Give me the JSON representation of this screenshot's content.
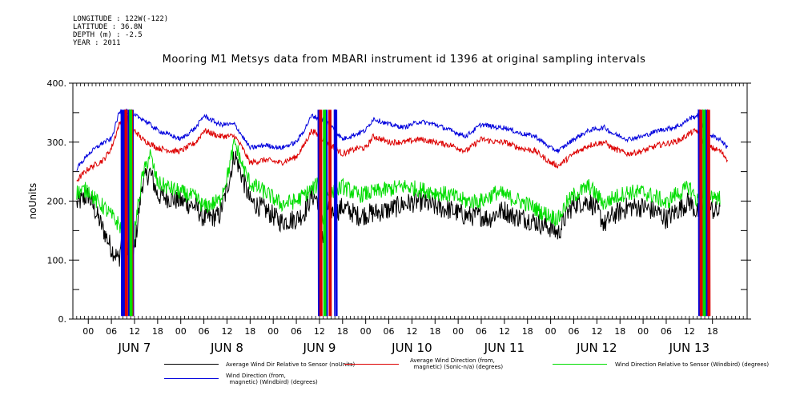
{
  "meta": {
    "longitude": "LONGITUDE : 122W(-122)",
    "latitude": "LATITUDE : 36.8N",
    "depth": "DEPTH (m) : -2.5",
    "year": "YEAR : 2011"
  },
  "chart_data": {
    "type": "line",
    "title": "Mooring M1 Metsys data from MBARI instrument id 1396 at original sampling intervals",
    "ylabel": "noUnits",
    "xlabel": "",
    "ylim": [
      0,
      400
    ],
    "yticks": [
      0,
      100,
      200,
      300,
      400
    ],
    "ytick_labels": [
      "0.",
      "100.",
      "200.",
      "300.",
      "400."
    ],
    "x_hours_range": [
      -4,
      171
    ],
    "xticks": [
      {
        "h": 0,
        "label": "00"
      },
      {
        "h": 6,
        "label": "06"
      },
      {
        "h": 12,
        "label": "12"
      },
      {
        "h": 18,
        "label": "18"
      },
      {
        "h": 24,
        "label": "00"
      },
      {
        "h": 30,
        "label": "06"
      },
      {
        "h": 36,
        "label": "12"
      },
      {
        "h": 42,
        "label": "18"
      },
      {
        "h": 48,
        "label": "00"
      },
      {
        "h": 54,
        "label": "06"
      },
      {
        "h": 60,
        "label": "12"
      },
      {
        "h": 66,
        "label": "18"
      },
      {
        "h": 72,
        "label": "00"
      },
      {
        "h": 78,
        "label": "06"
      },
      {
        "h": 84,
        "label": "12"
      },
      {
        "h": 90,
        "label": "18"
      },
      {
        "h": 96,
        "label": "00"
      },
      {
        "h": 102,
        "label": "06"
      },
      {
        "h": 108,
        "label": "12"
      },
      {
        "h": 114,
        "label": "18"
      },
      {
        "h": 120,
        "label": "00"
      },
      {
        "h": 126,
        "label": "06"
      },
      {
        "h": 132,
        "label": "12"
      },
      {
        "h": 138,
        "label": "18"
      },
      {
        "h": 144,
        "label": "00"
      },
      {
        "h": 150,
        "label": "06"
      },
      {
        "h": 156,
        "label": "12"
      },
      {
        "h": 162,
        "label": "18"
      }
    ],
    "day_labels": [
      {
        "h": 12,
        "label": "JUN  7"
      },
      {
        "h": 36,
        "label": "JUN  8"
      },
      {
        "h": 60,
        "label": "JUN  9"
      },
      {
        "h": 84,
        "label": "JUN 10"
      },
      {
        "h": 108,
        "label": "JUN 11"
      },
      {
        "h": 132,
        "label": "JUN 12"
      },
      {
        "h": 156,
        "label": "JUN 13"
      }
    ],
    "series": [
      {
        "name": "Average Wind Dir Relative to Sensor (noUnits)",
        "color": "#000000",
        "points": [
          [
            -3,
            195
          ],
          [
            0,
            210
          ],
          [
            4,
            150
          ],
          [
            6,
            120
          ],
          [
            8,
            100
          ],
          [
            9,
            160
          ],
          [
            10,
            140
          ],
          [
            11,
            60
          ],
          [
            12,
            120
          ],
          [
            14,
            230
          ],
          [
            16,
            250
          ],
          [
            18,
            210
          ],
          [
            24,
            200
          ],
          [
            28,
            190
          ],
          [
            30,
            170
          ],
          [
            34,
            175
          ],
          [
            36,
            220
          ],
          [
            38,
            280
          ],
          [
            40,
            240
          ],
          [
            42,
            200
          ],
          [
            46,
            185
          ],
          [
            50,
            165
          ],
          [
            54,
            170
          ],
          [
            56,
            180
          ],
          [
            58,
            210
          ],
          [
            60,
            200
          ],
          [
            61,
            130
          ],
          [
            62,
            190
          ],
          [
            64,
            180
          ],
          [
            66,
            190
          ],
          [
            70,
            175
          ],
          [
            74,
            180
          ],
          [
            78,
            185
          ],
          [
            82,
            195
          ],
          [
            86,
            200
          ],
          [
            90,
            190
          ],
          [
            94,
            185
          ],
          [
            98,
            175
          ],
          [
            102,
            175
          ],
          [
            104,
            170
          ],
          [
            106,
            180
          ],
          [
            108,
            185
          ],
          [
            110,
            175
          ],
          [
            114,
            170
          ],
          [
            118,
            160
          ],
          [
            120,
            155
          ],
          [
            122,
            145
          ],
          [
            124,
            175
          ],
          [
            126,
            195
          ],
          [
            130,
            200
          ],
          [
            132,
            185
          ],
          [
            134,
            160
          ],
          [
            136,
            175
          ],
          [
            140,
            190
          ],
          [
            144,
            190
          ],
          [
            148,
            180
          ],
          [
            150,
            170
          ],
          [
            152,
            180
          ],
          [
            154,
            190
          ],
          [
            156,
            200
          ],
          [
            158,
            180
          ],
          [
            160,
            190
          ],
          [
            162,
            185
          ],
          [
            164,
            180
          ]
        ]
      },
      {
        "name": "Average Wind Direction (from, magnetic) (Sonic-n/a) (degrees)",
        "color": "#dd0000",
        "points": [
          [
            -3,
            235
          ],
          [
            0,
            255
          ],
          [
            4,
            270
          ],
          [
            6,
            290
          ],
          [
            8,
            330
          ],
          [
            10,
            350
          ],
          [
            11,
            300
          ],
          [
            12,
            320
          ],
          [
            14,
            305
          ],
          [
            18,
            290
          ],
          [
            22,
            285
          ],
          [
            24,
            285
          ],
          [
            28,
            300
          ],
          [
            30,
            320
          ],
          [
            34,
            310
          ],
          [
            38,
            310
          ],
          [
            40,
            290
          ],
          [
            42,
            265
          ],
          [
            46,
            270
          ],
          [
            50,
            265
          ],
          [
            54,
            275
          ],
          [
            56,
            295
          ],
          [
            58,
            320
          ],
          [
            60,
            310
          ],
          [
            62,
            300
          ],
          [
            64,
            290
          ],
          [
            66,
            280
          ],
          [
            70,
            290
          ],
          [
            72,
            290
          ],
          [
            74,
            310
          ],
          [
            78,
            300
          ],
          [
            82,
            300
          ],
          [
            86,
            305
          ],
          [
            90,
            300
          ],
          [
            94,
            295
          ],
          [
            98,
            285
          ],
          [
            102,
            305
          ],
          [
            106,
            300
          ],
          [
            108,
            300
          ],
          [
            112,
            290
          ],
          [
            116,
            285
          ],
          [
            118,
            275
          ],
          [
            120,
            265
          ],
          [
            122,
            260
          ],
          [
            124,
            270
          ],
          [
            126,
            280
          ],
          [
            130,
            295
          ],
          [
            134,
            300
          ],
          [
            136,
            290
          ],
          [
            140,
            280
          ],
          [
            144,
            285
          ],
          [
            148,
            295
          ],
          [
            152,
            300
          ],
          [
            154,
            305
          ],
          [
            156,
            315
          ],
          [
            158,
            320
          ],
          [
            160,
            295
          ],
          [
            162,
            290
          ],
          [
            164,
            285
          ],
          [
            166,
            270
          ]
        ]
      },
      {
        "name": "Wind Direction Relative to Sensor (Windbird) (degrees)",
        "color": "#00dd00",
        "points": [
          [
            -3,
            215
          ],
          [
            0,
            220
          ],
          [
            2,
            200
          ],
          [
            4,
            190
          ],
          [
            6,
            175
          ],
          [
            8,
            160
          ],
          [
            10,
            140
          ],
          [
            11,
            80
          ],
          [
            12,
            150
          ],
          [
            14,
            240
          ],
          [
            16,
            280
          ],
          [
            18,
            230
          ],
          [
            22,
            220
          ],
          [
            24,
            215
          ],
          [
            28,
            205
          ],
          [
            30,
            190
          ],
          [
            34,
            200
          ],
          [
            36,
            240
          ],
          [
            38,
            300
          ],
          [
            40,
            260
          ],
          [
            42,
            230
          ],
          [
            46,
            215
          ],
          [
            50,
            195
          ],
          [
            54,
            200
          ],
          [
            56,
            210
          ],
          [
            58,
            220
          ],
          [
            60,
            230
          ],
          [
            61,
            160
          ],
          [
            62,
            210
          ],
          [
            64,
            215
          ],
          [
            66,
            225
          ],
          [
            70,
            210
          ],
          [
            74,
            215
          ],
          [
            78,
            220
          ],
          [
            82,
            225
          ],
          [
            86,
            220
          ],
          [
            90,
            215
          ],
          [
            94,
            210
          ],
          [
            98,
            200
          ],
          [
            102,
            200
          ],
          [
            106,
            215
          ],
          [
            108,
            210
          ],
          [
            110,
            205
          ],
          [
            114,
            195
          ],
          [
            118,
            180
          ],
          [
            120,
            175
          ],
          [
            122,
            170
          ],
          [
            124,
            195
          ],
          [
            126,
            210
          ],
          [
            130,
            225
          ],
          [
            132,
            210
          ],
          [
            134,
            195
          ],
          [
            136,
            205
          ],
          [
            140,
            215
          ],
          [
            144,
            215
          ],
          [
            148,
            205
          ],
          [
            150,
            195
          ],
          [
            152,
            210
          ],
          [
            154,
            215
          ],
          [
            156,
            225
          ],
          [
            158,
            200
          ],
          [
            160,
            215
          ],
          [
            162,
            210
          ],
          [
            164,
            205
          ]
        ]
      },
      {
        "name": "Wind Direction (from, magnetic) (Windbird) (degrees)",
        "color": "#0000dd",
        "points": [
          [
            -3,
            255
          ],
          [
            0,
            280
          ],
          [
            4,
            300
          ],
          [
            6,
            305
          ],
          [
            8,
            350
          ],
          [
            10,
            355
          ],
          [
            11,
            330
          ],
          [
            12,
            345
          ],
          [
            14,
            340
          ],
          [
            18,
            320
          ],
          [
            22,
            310
          ],
          [
            24,
            305
          ],
          [
            28,
            325
          ],
          [
            30,
            345
          ],
          [
            34,
            330
          ],
          [
            38,
            330
          ],
          [
            40,
            310
          ],
          [
            42,
            290
          ],
          [
            46,
            295
          ],
          [
            50,
            290
          ],
          [
            54,
            300
          ],
          [
            56,
            320
          ],
          [
            58,
            345
          ],
          [
            60,
            340
          ],
          [
            62,
            335
          ],
          [
            64,
            320
          ],
          [
            66,
            305
          ],
          [
            70,
            315
          ],
          [
            72,
            320
          ],
          [
            74,
            340
          ],
          [
            78,
            330
          ],
          [
            82,
            325
          ],
          [
            86,
            335
          ],
          [
            90,
            330
          ],
          [
            94,
            320
          ],
          [
            98,
            310
          ],
          [
            102,
            330
          ],
          [
            106,
            325
          ],
          [
            108,
            325
          ],
          [
            112,
            315
          ],
          [
            116,
            310
          ],
          [
            118,
            300
          ],
          [
            120,
            290
          ],
          [
            122,
            285
          ],
          [
            124,
            295
          ],
          [
            126,
            305
          ],
          [
            130,
            320
          ],
          [
            134,
            325
          ],
          [
            136,
            315
          ],
          [
            140,
            305
          ],
          [
            144,
            310
          ],
          [
            148,
            320
          ],
          [
            152,
            325
          ],
          [
            154,
            330
          ],
          [
            156,
            340
          ],
          [
            158,
            345
          ],
          [
            160,
            320
          ],
          [
            162,
            310
          ],
          [
            164,
            305
          ],
          [
            166,
            290
          ]
        ]
      }
    ],
    "wrap_segments": [
      {
        "color": "#0000dd",
        "ranges": [
          [
            8.4,
            9.6
          ],
          [
            10.2,
            11.0
          ],
          [
            11.2,
            11.8
          ],
          [
            59.6,
            60.4
          ],
          [
            61.4,
            62.2
          ],
          [
            63.8,
            64.6
          ],
          [
            158.2,
            159.2
          ],
          [
            160.0,
            161.0
          ]
        ]
      },
      {
        "color": "#dd0000",
        "ranges": [
          [
            9.4,
            10.2
          ],
          [
            10.8,
            11.6
          ],
          [
            60.0,
            60.8
          ],
          [
            62.4,
            63.2
          ],
          [
            158.6,
            159.4
          ],
          [
            160.6,
            161.4
          ]
        ]
      },
      {
        "color": "#00dd00",
        "ranges": [
          [
            10.6,
            11.4
          ],
          [
            61.0,
            61.8
          ],
          [
            159.4,
            160.2
          ]
        ]
      }
    ],
    "legend": [
      {
        "label": "Average Wind Dir Relative to Sensor (noUnits)",
        "color": "#000000"
      },
      {
        "label": "Average Wind Direction (from,\n  magnetic) (Sonic-n/a) (degrees)",
        "color": "#dd0000"
      },
      {
        "label": "Wind Direction Relative to Sensor (Windbird) (degrees)",
        "color": "#00dd00"
      },
      {
        "label": "Wind Direction (from,\n  magnetic) (Windbird) (degrees)",
        "color": "#0000dd"
      }
    ]
  }
}
